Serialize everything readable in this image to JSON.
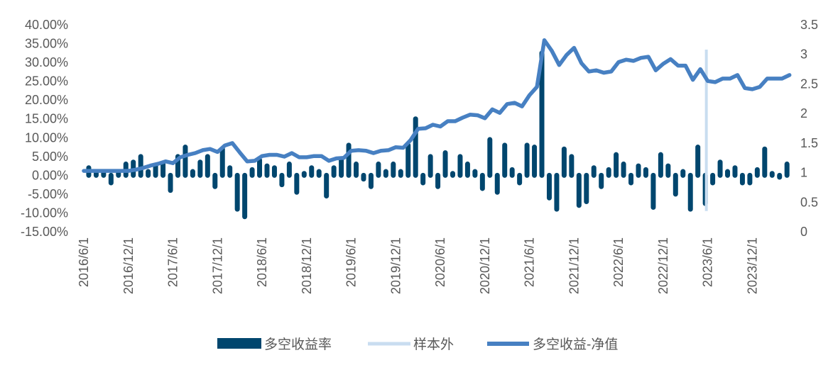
{
  "chart_data": {
    "type": "bar+line",
    "title": "",
    "categories": [
      "2016/6",
      "2016/7",
      "2016/8",
      "2016/9",
      "2016/10",
      "2016/11",
      "2016/12",
      "2017/1",
      "2017/2",
      "2017/3",
      "2017/4",
      "2017/5",
      "2017/6",
      "2017/7",
      "2017/8",
      "2017/9",
      "2017/10",
      "2017/11",
      "2017/12",
      "2018/1",
      "2018/2",
      "2018/3",
      "2018/4",
      "2018/5",
      "2018/6",
      "2018/7",
      "2018/8",
      "2018/9",
      "2018/10",
      "2018/11",
      "2018/12",
      "2019/1",
      "2019/2",
      "2019/3",
      "2019/4",
      "2019/5",
      "2019/6",
      "2019/7",
      "2019/8",
      "2019/9",
      "2019/10",
      "2019/11",
      "2019/12",
      "2020/1",
      "2020/2",
      "2020/3",
      "2020/4",
      "2020/5",
      "2020/6",
      "2020/7",
      "2020/8",
      "2020/9",
      "2020/10",
      "2020/11",
      "2020/12",
      "2021/1",
      "2021/2",
      "2021/3",
      "2021/4",
      "2021/5",
      "2021/6",
      "2021/7",
      "2021/8",
      "2021/9",
      "2021/10",
      "2021/11",
      "2021/12",
      "2022/1",
      "2022/2",
      "2022/3",
      "2022/4",
      "2022/5",
      "2022/6",
      "2022/7",
      "2022/8",
      "2022/9",
      "2022/10",
      "2022/11",
      "2022/12",
      "2023/1",
      "2023/2",
      "2023/3",
      "2023/4",
      "2023/5",
      "2023/6",
      "2023/7",
      "2023/8",
      "2023/9",
      "2023/10",
      "2023/11",
      "2023/12",
      "2024/1",
      "2024/2",
      "2024/3",
      "2024/4",
      "2024/5"
    ],
    "x_tick_labels": [
      "2016/6/1",
      "2016/12/1",
      "2017/6/1",
      "2017/12/1",
      "2018/6/1",
      "2018/12/1",
      "2019/6/1",
      "2019/12/1",
      "2020/6/1",
      "2020/12/1",
      "2021/6/1",
      "2021/12/1",
      "2022/6/1",
      "2022/12/1",
      "2023/6/1",
      "2023/12/1"
    ],
    "y_left": {
      "ticks": [
        40,
        35,
        30,
        25,
        20,
        15,
        10,
        5,
        0,
        -5,
        -10,
        -15
      ],
      "tick_labels": [
        "40.00%",
        "35.00%",
        "30.00%",
        "25.00%",
        "20.00%",
        "15.00%",
        "10.00%",
        "5.00%",
        "0.00%",
        "-5.00%",
        "-10.00%",
        "-15.00%"
      ],
      "ylim": [
        -15,
        40
      ]
    },
    "y_right": {
      "ticks": [
        3.5,
        3,
        2.5,
        2,
        1.5,
        1,
        0.5,
        0
      ],
      "tick_labels": [
        "3.5",
        "3",
        "2.5",
        "2",
        "1.5",
        "1",
        "0.5",
        "0"
      ],
      "ylim": [
        0,
        3.5
      ]
    },
    "grid": false,
    "legend_position": "bottom",
    "series": [
      {
        "name": "多空收益率",
        "type": "bar",
        "axis": "left",
        "unit": "%",
        "color": "#00466E",
        "values": [
          null,
          2,
          1,
          1,
          -2,
          1,
          3,
          3.5,
          5,
          1,
          2.5,
          3,
          -4,
          5,
          7.5,
          1,
          3.5,
          5,
          -3,
          7,
          2,
          -9,
          -11,
          1.5,
          4,
          2.5,
          2,
          -2.5,
          3,
          -4.5,
          0.5,
          2,
          1,
          -5.5,
          2,
          4,
          8,
          3,
          -1,
          -3,
          3,
          1,
          3,
          1,
          8,
          15,
          -2,
          5,
          -3,
          6,
          0.5,
          5,
          3,
          1,
          -3.5,
          9.5,
          -4.5,
          8,
          1.5,
          -2,
          8,
          7.5,
          32.5,
          -6,
          -9,
          7,
          5,
          -8,
          -7,
          2,
          -3,
          1.5,
          5.5,
          3,
          -2,
          2.5,
          1.5,
          -8.5,
          5.5,
          2.5,
          -5,
          1,
          -9,
          7.5,
          -7.5,
          -2,
          3.5,
          1,
          2,
          -2,
          -2,
          1.5,
          7,
          0.5,
          -0.5,
          3
        ]
      },
      {
        "name": "样本外",
        "type": "vline",
        "axis": "right",
        "color": "#C9DDF0",
        "x": "2023/6",
        "y_range": [
          0.35,
          3.08
        ]
      },
      {
        "name": "多空收益-净值",
        "type": "line",
        "axis": "right",
        "color": "#4780C2",
        "values": [
          1.03,
          1.03,
          1.03,
          1.03,
          1.03,
          1.03,
          1.03,
          1.05,
          1.08,
          1.12,
          1.15,
          1.19,
          1.16,
          1.26,
          1.3,
          1.33,
          1.38,
          1.4,
          1.35,
          1.46,
          1.5,
          1.34,
          1.19,
          1.2,
          1.28,
          1.3,
          1.3,
          1.27,
          1.33,
          1.26,
          1.26,
          1.28,
          1.28,
          1.2,
          1.24,
          1.25,
          1.37,
          1.38,
          1.37,
          1.33,
          1.37,
          1.38,
          1.43,
          1.42,
          1.55,
          1.74,
          1.75,
          1.81,
          1.78,
          1.87,
          1.87,
          1.93,
          1.98,
          1.97,
          1.92,
          2.07,
          2.01,
          2.16,
          2.18,
          2.12,
          2.31,
          2.45,
          3.24,
          3.06,
          2.82,
          2.99,
          3.11,
          2.85,
          2.71,
          2.73,
          2.69,
          2.71,
          2.87,
          2.91,
          2.89,
          2.94,
          2.96,
          2.73,
          2.84,
          2.92,
          2.81,
          2.81,
          2.57,
          2.75,
          2.55,
          2.53,
          2.59,
          2.59,
          2.65,
          2.43,
          2.41,
          2.45,
          2.59,
          2.59,
          2.59,
          2.65
        ]
      }
    ]
  }
}
